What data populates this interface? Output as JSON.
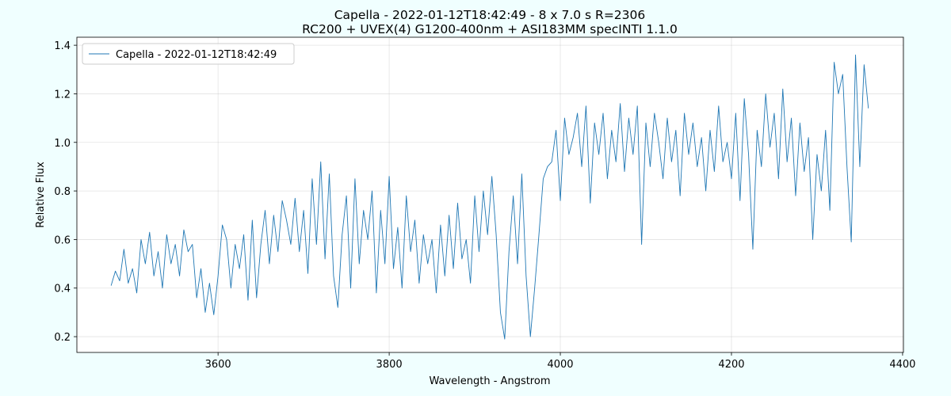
{
  "chart_data": {
    "type": "line",
    "title": "Capella - 2022-01-12T18:42:49 - 8 x 7.0 s  R=2306",
    "subtitle": "RC200 + UVEX(4) G1200-400nm + ASI183MM   specINTI 1.1.0",
    "x_label": "Wavelength - Angstrom",
    "y_label": "Relative Flux",
    "xlim": [
      3435,
      4401
    ],
    "ylim": [
      0.135,
      1.433
    ],
    "xticks": [
      3600,
      3800,
      4000,
      4200,
      4400
    ],
    "yticks": [
      0.2,
      0.4,
      0.6,
      0.8,
      {
        "value": 1,
        "label": "1.0"
      },
      1.2,
      1.4
    ],
    "grid": true,
    "legend": "upper left",
    "x": [
      3475,
      3480,
      3485,
      3490,
      3495,
      3500,
      3505,
      3510,
      3515,
      3520,
      3525,
      3530,
      3535,
      3540,
      3545,
      3550,
      3555,
      3560,
      3565,
      3570,
      3575,
      3580,
      3585,
      3590,
      3595,
      3600,
      3605,
      3610,
      3615,
      3620,
      3625,
      3630,
      3635,
      3640,
      3645,
      3650,
      3655,
      3660,
      3665,
      3670,
      3675,
      3680,
      3685,
      3690,
      3695,
      3700,
      3705,
      3710,
      3715,
      3720,
      3725,
      3730,
      3735,
      3740,
      3745,
      3750,
      3755,
      3760,
      3765,
      3770,
      3775,
      3780,
      3785,
      3790,
      3795,
      3800,
      3805,
      3810,
      3815,
      3820,
      3825,
      3830,
      3835,
      3840,
      3845,
      3850,
      3855,
      3860,
      3865,
      3870,
      3875,
      3880,
      3885,
      3890,
      3895,
      3900,
      3905,
      3910,
      3915,
      3920,
      3925,
      3930,
      3935,
      3940,
      3945,
      3950,
      3955,
      3960,
      3965,
      3970,
      3975,
      3980,
      3985,
      3990,
      3995,
      4000,
      4005,
      4010,
      4015,
      4020,
      4025,
      4030,
      4035,
      4040,
      4045,
      4050,
      4055,
      4060,
      4065,
      4070,
      4075,
      4080,
      4085,
      4090,
      4095,
      4100,
      4105,
      4110,
      4115,
      4120,
      4125,
      4130,
      4135,
      4140,
      4145,
      4150,
      4155,
      4160,
      4165,
      4170,
      4175,
      4180,
      4185,
      4190,
      4195,
      4200,
      4205,
      4210,
      4215,
      4220,
      4225,
      4230,
      4235,
      4240,
      4245,
      4250,
      4255,
      4260,
      4265,
      4270,
      4275,
      4280,
      4285,
      4290,
      4295,
      4300,
      4305,
      4310,
      4315,
      4320,
      4325,
      4330,
      4335,
      4340,
      4345,
      4350,
      4355,
      4360
    ],
    "series": [
      {
        "name": "Capella - 2022-01-12T18:42:49",
        "color": "#1f77b4",
        "values": [
          0.41,
          0.47,
          0.43,
          0.56,
          0.42,
          0.48,
          0.38,
          0.6,
          0.5,
          0.63,
          0.45,
          0.55,
          0.4,
          0.62,
          0.5,
          0.58,
          0.45,
          0.64,
          0.55,
          0.58,
          0.36,
          0.48,
          0.3,
          0.42,
          0.29,
          0.45,
          0.66,
          0.6,
          0.4,
          0.58,
          0.48,
          0.62,
          0.35,
          0.68,
          0.36,
          0.58,
          0.72,
          0.5,
          0.7,
          0.55,
          0.76,
          0.68,
          0.58,
          0.77,
          0.55,
          0.72,
          0.46,
          0.85,
          0.58,
          0.92,
          0.52,
          0.87,
          0.45,
          0.32,
          0.62,
          0.78,
          0.4,
          0.85,
          0.5,
          0.72,
          0.6,
          0.8,
          0.38,
          0.72,
          0.5,
          0.86,
          0.48,
          0.65,
          0.4,
          0.78,
          0.55,
          0.68,
          0.42,
          0.62,
          0.5,
          0.6,
          0.38,
          0.66,
          0.45,
          0.7,
          0.48,
          0.75,
          0.52,
          0.6,
          0.42,
          0.78,
          0.55,
          0.8,
          0.62,
          0.86,
          0.62,
          0.3,
          0.19,
          0.55,
          0.78,
          0.5,
          0.87,
          0.45,
          0.2,
          0.4,
          0.62,
          0.85,
          0.9,
          0.92,
          1.05,
          0.76,
          1.1,
          0.95,
          1.02,
          1.12,
          0.9,
          1.15,
          0.75,
          1.08,
          0.95,
          1.12,
          0.85,
          1.05,
          0.92,
          1.16,
          0.88,
          1.1,
          0.95,
          1.15,
          0.58,
          1.08,
          0.9,
          1.12,
          1.0,
          0.85,
          1.1,
          0.92,
          1.05,
          0.78,
          1.12,
          0.95,
          1.08,
          0.9,
          1.02,
          0.8,
          1.05,
          0.88,
          1.15,
          0.92,
          1.0,
          0.85,
          1.12,
          0.76,
          1.18,
          0.95,
          0.56,
          1.05,
          0.9,
          1.2,
          0.98,
          1.12,
          0.85,
          1.22,
          0.92,
          1.1,
          0.78,
          1.08,
          0.88,
          1.02,
          0.6,
          0.95,
          0.8,
          1.05,
          0.72,
          1.33,
          1.2,
          1.28,
          0.9,
          0.59,
          1.36,
          0.9,
          1.32,
          1.14
        ]
      }
    ]
  }
}
